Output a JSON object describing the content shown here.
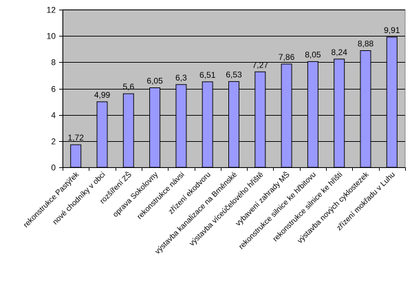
{
  "colors": {
    "plot_background": "#c0c0c0",
    "bar_fill": "#9999ff",
    "bar_stroke": "#000000",
    "gridline": "#000000",
    "page_background": "#ffffff"
  },
  "chart_data": {
    "type": "bar",
    "title": "",
    "xlabel": "",
    "ylabel": "",
    "ylim": [
      0,
      12
    ],
    "yticks": [
      0,
      2,
      4,
      6,
      8,
      10,
      12
    ],
    "grid": true,
    "legend": "none",
    "categories": [
      "rekonstrukce Pastýřek",
      "nové chodníky v obci",
      "rozšíření ZŠ",
      "oprava Sokolovny",
      "rekonstrukce návsi",
      "zřízení ekodvoru",
      "výstavba kanalizace na Brněnské",
      "výstavba víceúčelového hřiště",
      "vybavení zahrady MŠ",
      "rekonstrukce silnice ke hřbitovu",
      "rekonstrukce silnice ke hřišti",
      "výstavba nových cyklostezek",
      "zřízení mokřadu v Luhu"
    ],
    "values": [
      1.72,
      4.99,
      5.6,
      6.05,
      6.3,
      6.51,
      6.53,
      7.27,
      7.86,
      8.05,
      8.24,
      8.88,
      9.91
    ],
    "data_labels": [
      "1,72",
      "4,99",
      "5,6",
      "6,05",
      "6,3",
      "6,51",
      "6,53",
      "7,27",
      "7,86",
      "8,05",
      "8,24",
      "8,88",
      "9,91"
    ]
  }
}
